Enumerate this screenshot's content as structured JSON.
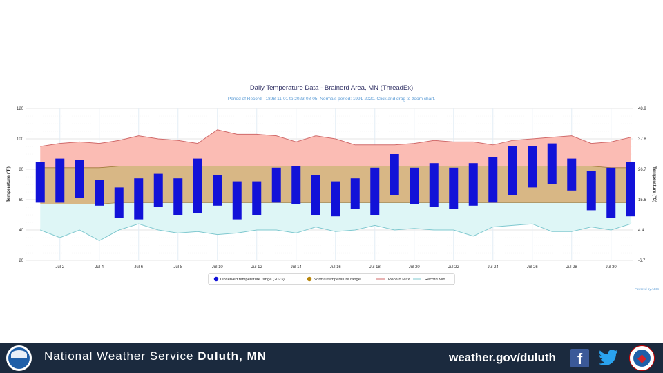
{
  "chart_data": {
    "type": "bar",
    "title": "Daily Temperature Data - Brainerd Area, MN (ThreadEx)",
    "subtitle": "Period of Record - 1898-11-01 to 2023-08-05. Normals period: 1991-2020. Click and drag to zoom chart.",
    "ylabel": "Temperature (°F)",
    "ylabel_right": "Temperature (°C)",
    "ylim": [
      20,
      120
    ],
    "y_ticks": [
      "120",
      "100",
      "80",
      "60",
      "40",
      "20"
    ],
    "y_right_ticks": [
      "48.9",
      "37.8",
      "26.7",
      "15.6",
      "4.4",
      "-6.7"
    ],
    "x_ticks": [
      "Jul 2",
      "Jul 4",
      "Jul 6",
      "Jul 8",
      "Jul 10",
      "Jul 12",
      "Jul 14",
      "Jul 16",
      "Jul 18",
      "Jul 20",
      "Jul 22",
      "Jul 24",
      "Jul 26",
      "Jul 28",
      "Jul 30"
    ],
    "days": [
      1,
      2,
      3,
      4,
      5,
      6,
      7,
      8,
      9,
      10,
      11,
      12,
      13,
      14,
      15,
      16,
      17,
      18,
      19,
      20,
      21,
      22,
      23,
      24,
      25,
      26,
      27,
      28,
      29,
      30,
      31
    ],
    "observed_high": [
      85,
      87,
      86,
      73,
      68,
      74,
      77,
      74,
      87,
      76,
      72,
      72,
      81,
      82,
      76,
      72,
      74,
      81,
      90,
      81,
      84,
      81,
      84,
      88,
      95,
      95,
      97,
      87,
      79,
      81,
      85
    ],
    "observed_low": [
      58,
      58,
      61,
      56,
      48,
      47,
      55,
      50,
      51,
      56,
      47,
      50,
      58,
      57,
      50,
      49,
      54,
      50,
      63,
      57,
      55,
      54,
      56,
      58,
      63,
      68,
      70,
      66,
      53,
      48,
      49
    ],
    "normal_high": [
      81,
      81,
      81,
      81,
      82,
      82,
      82,
      82,
      82,
      82,
      82,
      82,
      82,
      82,
      82,
      82,
      82,
      82,
      82,
      82,
      82,
      82,
      82,
      82,
      82,
      82,
      82,
      82,
      82,
      81,
      81
    ],
    "normal_low": [
      57,
      57,
      57,
      57,
      58,
      58,
      58,
      58,
      58,
      58,
      58,
      58,
      58,
      58,
      58,
      58,
      58,
      58,
      58,
      58,
      58,
      58,
      58,
      58,
      58,
      58,
      58,
      58,
      58,
      58,
      58
    ],
    "record_max": [
      95,
      97,
      98,
      97,
      99,
      102,
      100,
      99,
      97,
      106,
      103,
      103,
      102,
      98,
      102,
      100,
      96,
      96,
      96,
      97,
      99,
      98,
      98,
      96,
      99,
      100,
      101,
      102,
      97,
      98,
      101
    ],
    "record_min": [
      40,
      35,
      40,
      33,
      40,
      44,
      40,
      38,
      39,
      37,
      38,
      40,
      40,
      38,
      42,
      39,
      40,
      43,
      40,
      41,
      40,
      40,
      36,
      42,
      43,
      44,
      39,
      39,
      42,
      40,
      44
    ],
    "min_reference_line": 32,
    "legend_position": "bottom",
    "series": [
      {
        "name": "Observed temperature range (2023)",
        "color": "#1414d4"
      },
      {
        "name": "Normal temperature range",
        "color": "#b8860b"
      },
      {
        "name": "Record Max",
        "color": "#d06a6a"
      },
      {
        "name": "Record Min",
        "color": "#7fc8cf"
      }
    ],
    "credit": "Powered by ACIS"
  },
  "colors": {
    "observed": "#1212d8",
    "normal_fill": "#d8b785",
    "normal_stroke": "#a07a3a",
    "record_max_fill": "#fbbcb4",
    "record_max_stroke": "#d06a6a",
    "record_min_fill": "#def6f6",
    "record_min_stroke": "#7fc8cf",
    "title": "#333366",
    "subtitle": "#5a9bd5",
    "footer_bg": "#1b2a3e"
  },
  "footer": {
    "org_prefix": "National Weather Service",
    "office": "Duluth, MN",
    "url": "weather.gov/duluth",
    "logos": [
      "noaa-logo",
      "facebook-icon",
      "twitter-icon",
      "nws-logo"
    ]
  }
}
